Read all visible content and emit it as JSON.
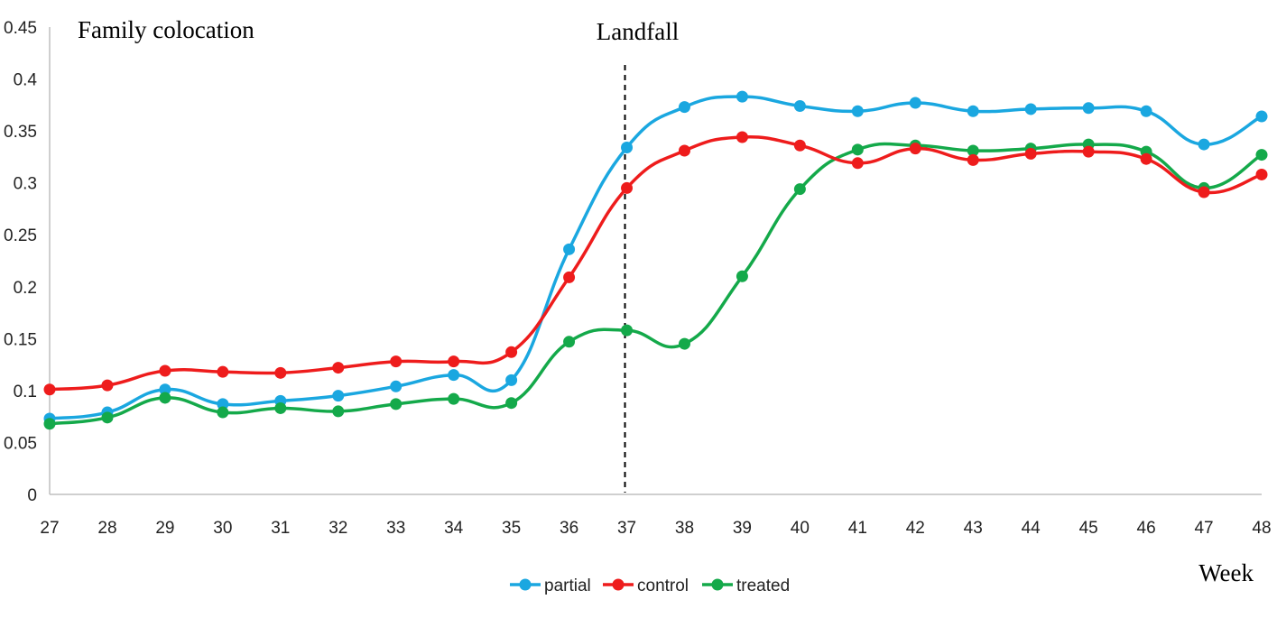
{
  "chart_data": {
    "type": "line",
    "title": "Family colocation",
    "xlabel": "Week",
    "ylabel": "",
    "x": [
      27,
      28,
      29,
      30,
      31,
      32,
      33,
      34,
      35,
      36,
      37,
      38,
      39,
      40,
      41,
      42,
      43,
      44,
      45,
      46,
      47,
      48
    ],
    "ylim": [
      0,
      0.45
    ],
    "yticks": [
      "0",
      "0.05",
      "0.1",
      "0.15",
      "0.2",
      "0.25",
      "0.3",
      "0.35",
      "0.4",
      "0.45"
    ],
    "grid": false,
    "legend_position": "bottom",
    "annotation": {
      "label": "Landfall",
      "x": 37
    },
    "series": [
      {
        "name": "partial",
        "color": "#1aa7e0",
        "values": [
          0.073,
          0.079,
          0.101,
          0.087,
          0.09,
          0.095,
          0.104,
          0.115,
          0.11,
          0.236,
          0.334,
          0.373,
          0.383,
          0.374,
          0.369,
          0.377,
          0.369,
          0.371,
          0.372,
          0.369,
          0.337,
          0.364
        ]
      },
      {
        "name": "control",
        "color": "#ee1c1c",
        "values": [
          0.101,
          0.105,
          0.119,
          0.118,
          0.117,
          0.122,
          0.128,
          0.128,
          0.137,
          0.209,
          0.295,
          0.331,
          0.344,
          0.336,
          0.319,
          0.333,
          0.322,
          0.328,
          0.33,
          0.323,
          0.291,
          0.308
        ]
      },
      {
        "name": "treated",
        "color": "#14a94a",
        "values": [
          0.068,
          0.074,
          0.093,
          0.079,
          0.083,
          0.08,
          0.087,
          0.092,
          0.088,
          0.147,
          0.158,
          0.145,
          0.21,
          0.294,
          0.332,
          0.336,
          0.331,
          0.333,
          0.337,
          0.33,
          0.295,
          0.327
        ]
      }
    ]
  }
}
